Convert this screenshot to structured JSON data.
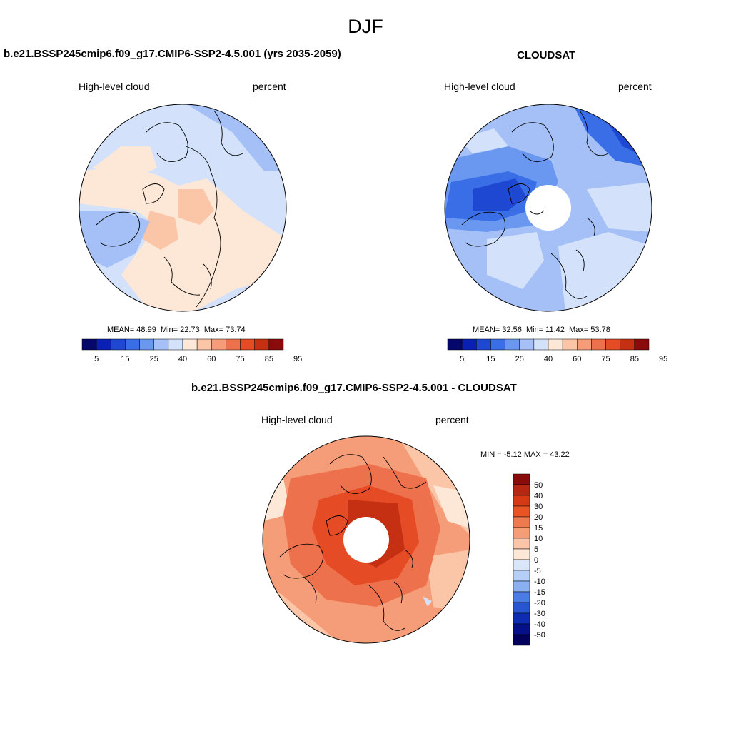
{
  "title": "DJF",
  "panels": [
    {
      "title": "b.e21.BSSP245cmip6.f09_g17.CMIP6-SSP2-4.5.001 (yrs 2035-2059)",
      "left_label": "High-level cloud",
      "right_label": "percent",
      "stats": {
        "mean_label": "MEAN=",
        "mean": "48.99",
        "min_label": "Min=",
        "min": "22.73",
        "max_label": "Max=",
        "max": "73.74"
      }
    },
    {
      "title": "CLOUDSAT",
      "left_label": "High-level cloud",
      "right_label": "percent",
      "stats": {
        "mean_label": "MEAN=",
        "mean": "32.56",
        "min_label": "Min=",
        "min": "11.42",
        "max_label": "Max=",
        "max": "53.78"
      }
    }
  ],
  "diff": {
    "title": "b.e21.BSSP245cmip6.f09_g17.CMIP6-SSP2-4.5.001 - CLOUDSAT",
    "left_label": "High-level cloud",
    "right_label": "percent",
    "minmax": "MIN =  -5.12 MAX =  43.22"
  },
  "colorbar": {
    "colors": [
      "#05076a",
      "#0a20b4",
      "#1f48d2",
      "#3a6ee6",
      "#6a98f0",
      "#a4c0f6",
      "#d3e2fa",
      "#fde8d8",
      "#fbc6a8",
      "#f59c79",
      "#ed714c",
      "#e54b24",
      "#c53012",
      "#8a0b0b"
    ],
    "labels": [
      "5",
      "15",
      "25",
      "40",
      "60",
      "75",
      "85",
      "95"
    ]
  },
  "diff_colorbar": {
    "colors": [
      "#8a0b0b",
      "#b52712",
      "#d63a15",
      "#ea5424",
      "#f07a4f",
      "#f59c79",
      "#fbc6a8",
      "#fde8d8",
      "#d9e6fa",
      "#b4cef6",
      "#8ab0f0",
      "#4d7be6",
      "#2a55d2",
      "#0e2cb2",
      "#06108a",
      "#02005a"
    ],
    "labels": [
      "50",
      "40",
      "30",
      "20",
      "15",
      "10",
      "5",
      "0",
      "-5",
      "-10",
      "-15",
      "-20",
      "-30",
      "-40",
      "-50"
    ]
  }
}
